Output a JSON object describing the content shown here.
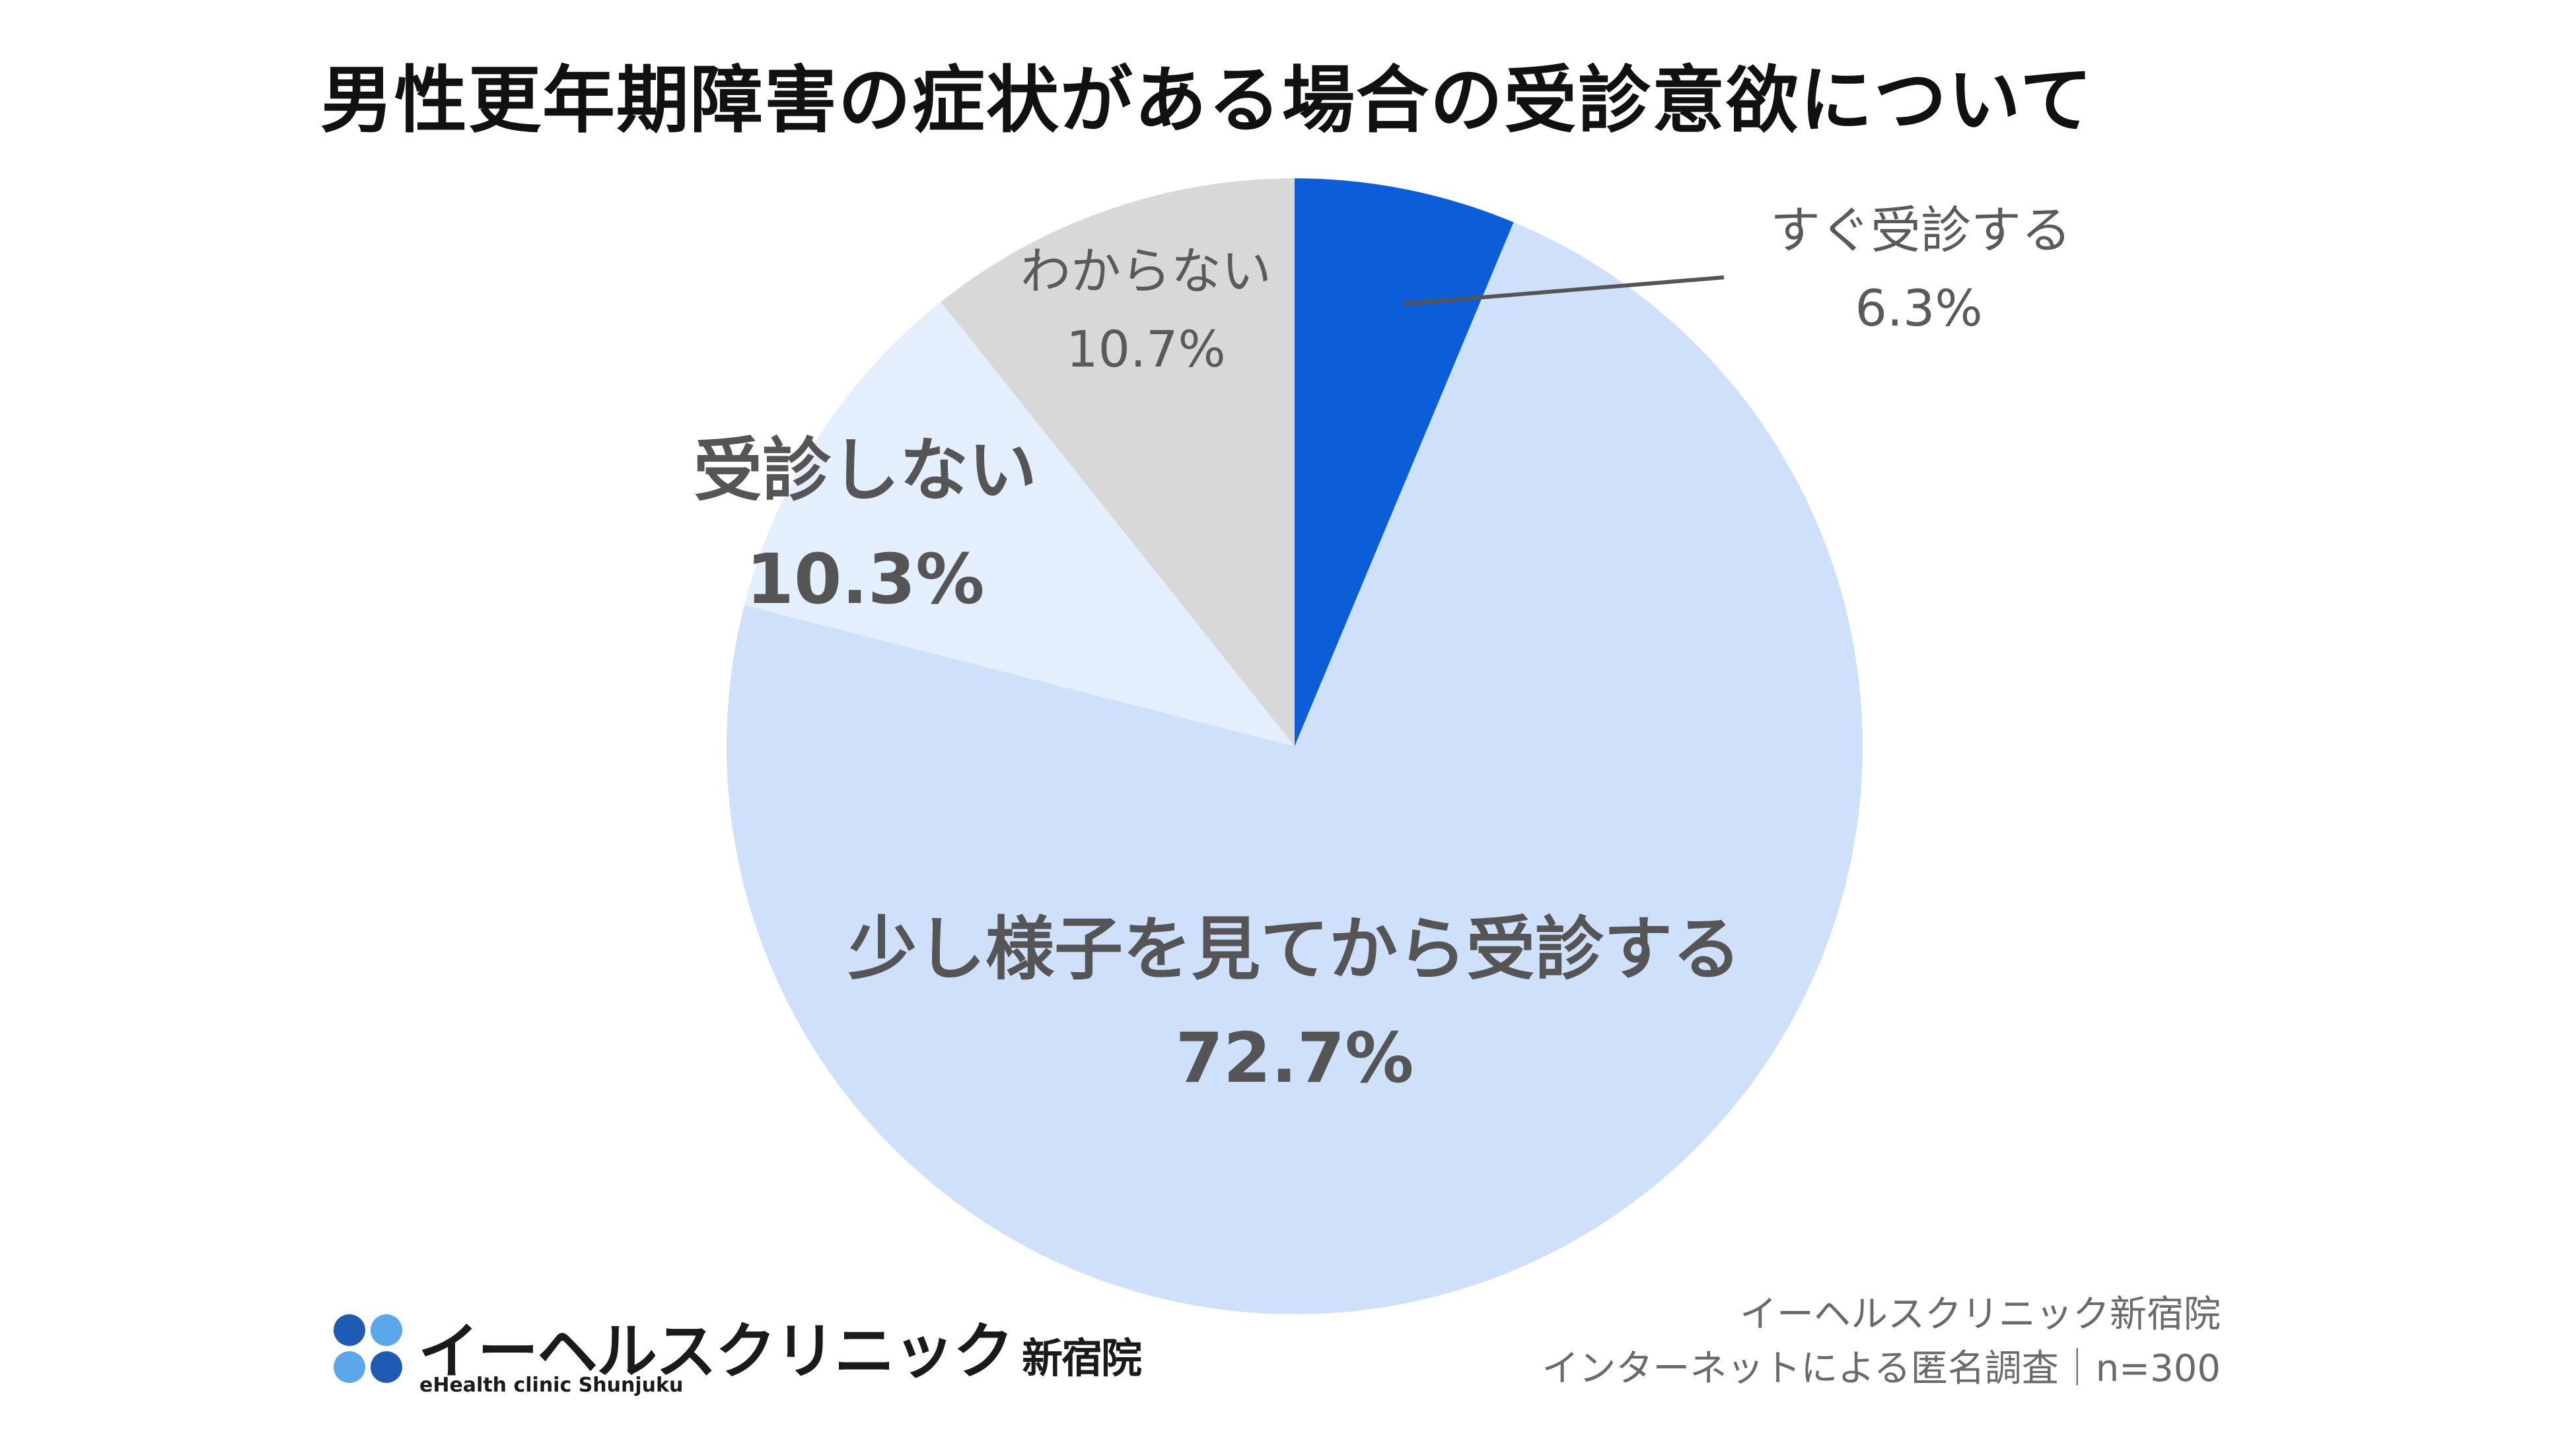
{
  "colors": {
    "soon": "#0b5ed7",
    "wait": "#cfe0fb",
    "no": "#e4effd",
    "unknown": "#d8d8d8",
    "leader": "#555555",
    "logo_dot_dark": "#1f5bb5",
    "logo_dot_light": "#5aa7ea"
  },
  "chart_data": {
    "type": "pie",
    "title": "男性更年期障害の症状がある場合の受診意欲について",
    "slices": [
      {
        "label": "すぐ受診する",
        "value": 6.3,
        "display": "6.3%",
        "color": "#0b5ed7"
      },
      {
        "label": "少し様子を見てから受診する",
        "value": 72.7,
        "display": "72.7%",
        "color": "#cfe0fb"
      },
      {
        "label": "受診しない",
        "value": 10.3,
        "display": "10.3%",
        "color": "#e4effd"
      },
      {
        "label": "わからない",
        "value": 10.7,
        "display": "10.7%",
        "color": "#d8d8d8"
      }
    ],
    "start_angle_deg": 0,
    "direction": "clockwise",
    "legend": "none"
  },
  "source": {
    "line1": "イーヘルスクリニック新宿院",
    "line2": "インターネットによる匿名調査｜n=300"
  },
  "logo": {
    "name_jp": "イーヘルスクリニック",
    "branch_jp": "新宿院",
    "name_en": "eHealth clinic Shunjuku"
  }
}
